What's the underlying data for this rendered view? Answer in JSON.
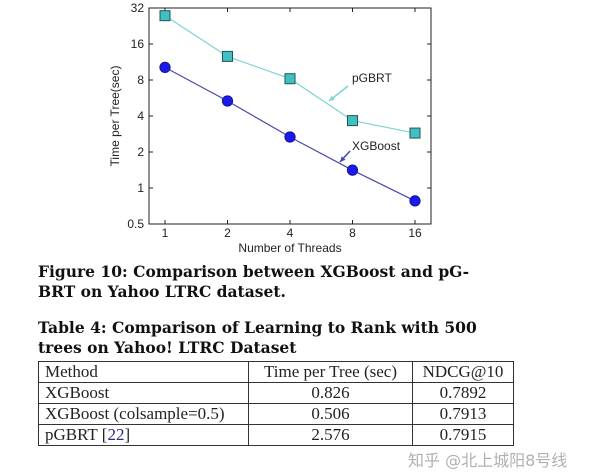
{
  "chart_data": {
    "type": "line",
    "xlabel": "Number of Threads",
    "ylabel": "Time per Tree(sec)",
    "x": [
      1,
      2,
      4,
      8,
      16
    ],
    "x_ticks": [
      "1",
      "2",
      "4",
      "8",
      "16"
    ],
    "y_ticks": [
      "0.5",
      "1",
      "2",
      "4",
      "8",
      "16",
      "32"
    ],
    "y_tick_values": [
      0.5,
      1,
      2,
      4,
      8,
      16,
      32
    ],
    "xscale": "log2",
    "yscale": "log2",
    "ylim": [
      0.5,
      32
    ],
    "grid": false,
    "series": [
      {
        "name": "pGBRT",
        "values": [
          27.6,
          12.6,
          8.2,
          3.66,
          2.88
        ],
        "color": "#40c0c0",
        "line_color": "#7fd4d4",
        "marker": "square"
      },
      {
        "name": "XGBoost",
        "values": [
          10.2,
          5.34,
          2.67,
          1.41,
          0.78
        ],
        "color": "#1a1aee",
        "line_color": "#4848b0",
        "marker": "circle"
      }
    ]
  },
  "figure_caption": [
    "Figure 10: Comparison between XGBoost and pG-",
    "BRT on Yahoo LTRC dataset."
  ],
  "table_caption": [
    "Table 4: Comparison of Learning to Rank with 500",
    "trees on Yahoo! LTRC Dataset"
  ],
  "table": {
    "headers": [
      "Method",
      "Time per Tree (sec)",
      "NDCG@10"
    ],
    "rows": [
      {
        "method": "XGBoost",
        "ref": "",
        "time": "0.826",
        "ndcg": "0.7892"
      },
      {
        "method": "XGBoost (colsample=0.5)",
        "ref": "",
        "time": "0.506",
        "ndcg": "0.7913"
      },
      {
        "method": "pGBRT ",
        "ref": "22",
        "time": "2.576",
        "ndcg": "0.7915"
      }
    ]
  },
  "watermark": "知乎 @北上城阳8号线"
}
